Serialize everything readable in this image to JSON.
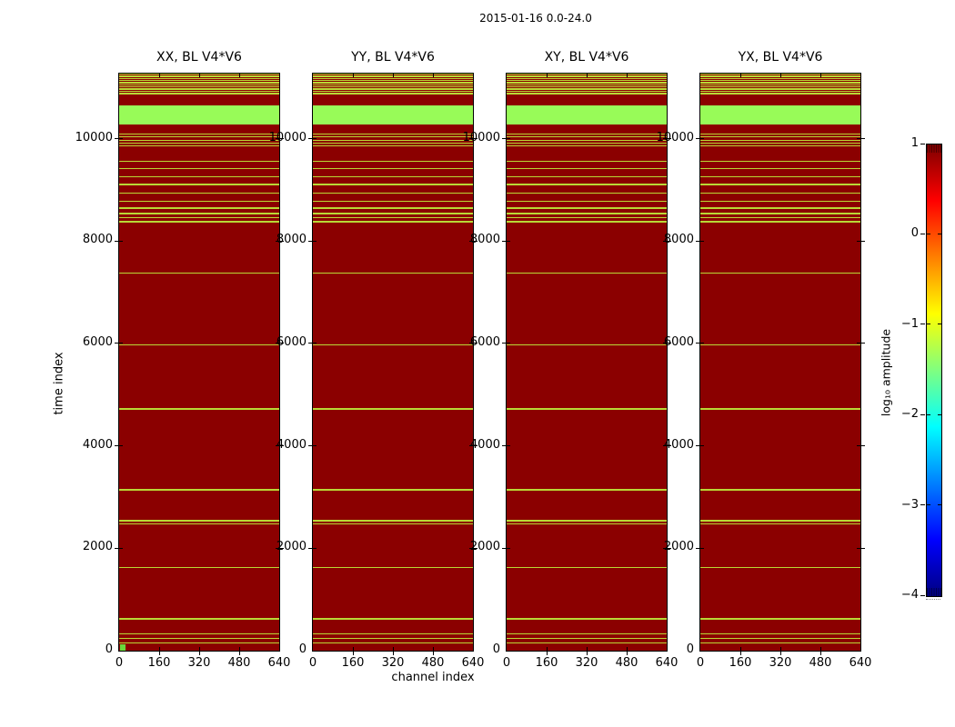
{
  "suptitle": "2015-01-16 0.0-24.0",
  "axis": {
    "xlabel": "channel index",
    "ylabel": "time index",
    "x_tick_labels": [
      "0",
      "160",
      "320",
      "480",
      "640"
    ],
    "y_tick_labels": [
      "0",
      "2000",
      "4000",
      "6000",
      "8000",
      "10000"
    ]
  },
  "colorbar": {
    "label": "log₁₀ amplitude",
    "tick_labels": [
      "1",
      "0",
      "−1",
      "−2",
      "−3",
      "−4"
    ]
  },
  "chart_data": {
    "type": "heatmap",
    "title": "2015-01-16 0.0-24.0",
    "xlabel": "channel index",
    "ylabel": "time index",
    "panels": [
      "XX, BL V4*V6",
      "YY, BL V4*V6",
      "XY, BL V4*V6",
      "YX, BL V4*V6"
    ],
    "x_range": [
      0,
      640
    ],
    "y_range": [
      0,
      11270
    ],
    "x_tick_values": [
      0,
      160,
      320,
      480,
      640
    ],
    "y_tick_values": [
      0,
      2000,
      4000,
      6000,
      8000,
      10000
    ],
    "colorbar": {
      "label": "log₁₀ amplitude",
      "vmin": -4,
      "vmax": 1,
      "tick_values": [
        1,
        0,
        -1,
        -2,
        -3,
        -4
      ],
      "colormap": "jet",
      "position": "right"
    },
    "colors": {
      "background": "#8b0000",
      "thin_stripe": "#b9d836",
      "wide_band": "#98fb58",
      "corner_patch": "#68d83a"
    },
    "stripes_time_center_width": [
      [
        11256,
        22
      ],
      [
        11215,
        22
      ],
      [
        11174,
        22
      ],
      [
        11132,
        22
      ],
      [
        11091,
        22
      ],
      [
        11050,
        22
      ],
      [
        11008,
        22
      ],
      [
        10967,
        22
      ],
      [
        10926,
        22
      ],
      [
        10880,
        45
      ],
      [
        10088,
        22
      ],
      [
        10030,
        22
      ],
      [
        9971,
        22
      ],
      [
        9918,
        22
      ],
      [
        9865,
        22
      ],
      [
        9558,
        22
      ],
      [
        9411,
        22
      ],
      [
        9252,
        22
      ],
      [
        9105,
        22
      ],
      [
        8938,
        22
      ],
      [
        8779,
        22
      ],
      [
        8645,
        22
      ],
      [
        8538,
        22
      ],
      [
        8455,
        22
      ],
      [
        8379,
        22
      ],
      [
        7376,
        26
      ],
      [
        5972,
        26
      ],
      [
        4721,
        26
      ],
      [
        3140,
        26
      ],
      [
        2538,
        22
      ],
      [
        2478,
        22
      ],
      [
        1623,
        26
      ],
      [
        620,
        26
      ],
      [
        326,
        22
      ],
      [
        237,
        22
      ],
      [
        149,
        22
      ]
    ],
    "wide_bands_time_center_width": [
      [
        10460,
        380
      ]
    ],
    "corner_patch": {
      "panel_index": 0,
      "time_range": [
        0,
        130
      ],
      "channel_range": [
        0,
        25
      ]
    }
  }
}
